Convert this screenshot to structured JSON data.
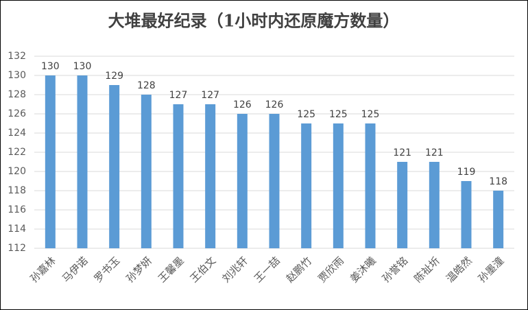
{
  "chart_data": {
    "type": "bar",
    "title": "大堆最好纪录（1小时内还原魔方数量）",
    "categories": [
      "孙嘉林",
      "马伊诺",
      "罗书玉",
      "孙梦妍",
      "王馨墨",
      "王伯文",
      "刘兆轩",
      "王一喆",
      "赵鹏竹",
      "贾欣雨",
      "姜沐曦",
      "孙誉铭",
      "陈祉圻",
      "温皓然",
      "孙墨潼"
    ],
    "values": [
      130,
      130,
      129,
      128,
      127,
      127,
      126,
      126,
      125,
      125,
      125,
      121,
      121,
      119,
      118
    ],
    "color": "#5b9bd5",
    "ylim": [
      112,
      132
    ],
    "yticks": [
      112,
      114,
      116,
      118,
      120,
      122,
      124,
      126,
      128,
      130,
      132
    ],
    "grid": true
  }
}
